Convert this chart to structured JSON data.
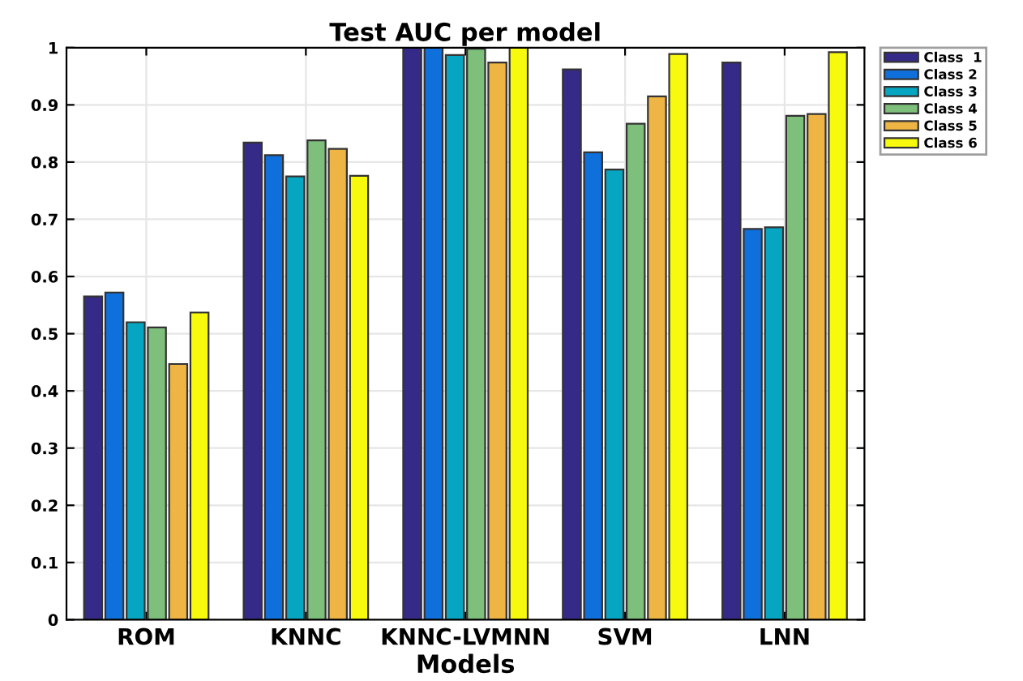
{
  "chart_data": {
    "type": "bar",
    "title": "Test AUC per model",
    "xlabel": "Models",
    "categories": [
      "ROM",
      "KNNC",
      "KNNC-LVMNN",
      "SVM",
      "LNN"
    ],
    "series": [
      {
        "name": "Class  1",
        "color": "#352a87",
        "values": [
          0.565,
          0.834,
          1.0,
          0.962,
          0.974
        ]
      },
      {
        "name": "Class 2",
        "color": "#0f6fdb",
        "values": [
          0.572,
          0.812,
          1.0,
          0.817,
          0.683
        ]
      },
      {
        "name": "Class 3",
        "color": "#06a6c2",
        "values": [
          0.52,
          0.775,
          0.987,
          0.787,
          0.686
        ]
      },
      {
        "name": "Class 4",
        "color": "#7dbf7b",
        "values": [
          0.511,
          0.838,
          0.998,
          0.867,
          0.881
        ]
      },
      {
        "name": "Class 5",
        "color": "#eeb545",
        "values": [
          0.447,
          0.823,
          0.974,
          0.915,
          0.884
        ]
      },
      {
        "name": "Class 6",
        "color": "#f8fa0d",
        "values": [
          0.537,
          0.776,
          1.0,
          0.989,
          0.992
        ]
      }
    ],
    "ylim": [
      0,
      1
    ],
    "yticks": [
      0,
      0.1,
      0.2,
      0.3,
      0.4,
      0.5,
      0.6,
      0.7,
      0.8,
      0.9,
      1
    ],
    "grid": true,
    "legend": "top right"
  }
}
